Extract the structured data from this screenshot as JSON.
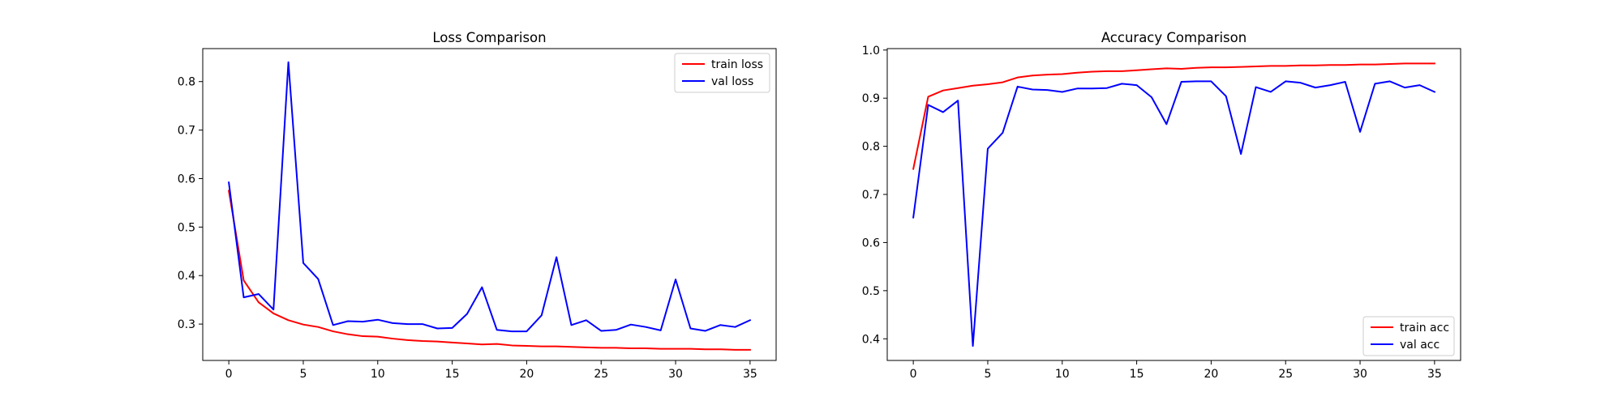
{
  "chart_data": [
    {
      "type": "line",
      "title": "Loss Comparison",
      "xlabel": "",
      "ylabel": "",
      "xlim": [
        -1.75,
        36.75
      ],
      "ylim": [
        0.225,
        0.868
      ],
      "xticks": [
        0,
        5,
        10,
        15,
        20,
        25,
        30,
        35
      ],
      "yticks": [
        0.3,
        0.4,
        0.5,
        0.6,
        0.7,
        0.8
      ],
      "grid": false,
      "legend": "top-right",
      "x": [
        0,
        1,
        2,
        3,
        4,
        5,
        6,
        7,
        8,
        9,
        10,
        11,
        12,
        13,
        14,
        15,
        16,
        17,
        18,
        19,
        20,
        21,
        22,
        23,
        24,
        25,
        26,
        27,
        28,
        29,
        30,
        31,
        32,
        33,
        34,
        35
      ],
      "series": [
        {
          "name": "train loss",
          "color": "#ff0000",
          "values": [
            0.575,
            0.39,
            0.345,
            0.322,
            0.308,
            0.299,
            0.294,
            0.285,
            0.279,
            0.275,
            0.274,
            0.27,
            0.267,
            0.265,
            0.264,
            0.262,
            0.26,
            0.258,
            0.259,
            0.256,
            0.255,
            0.254,
            0.254,
            0.253,
            0.252,
            0.251,
            0.251,
            0.25,
            0.25,
            0.249,
            0.249,
            0.249,
            0.248,
            0.248,
            0.247,
            0.247
          ]
        },
        {
          "name": "val loss",
          "color": "#0000ff",
          "values": [
            0.592,
            0.355,
            0.362,
            0.33,
            0.84,
            0.426,
            0.393,
            0.298,
            0.306,
            0.305,
            0.309,
            0.302,
            0.3,
            0.3,
            0.291,
            0.292,
            0.321,
            0.376,
            0.288,
            0.285,
            0.285,
            0.318,
            0.438,
            0.298,
            0.308,
            0.286,
            0.288,
            0.299,
            0.294,
            0.287,
            0.392,
            0.291,
            0.286,
            0.298,
            0.294,
            0.308
          ]
        }
      ]
    },
    {
      "type": "line",
      "title": "Accuracy Comparison",
      "xlabel": "",
      "ylabel": "",
      "xlim": [
        -1.75,
        36.75
      ],
      "ylim": [
        0.355,
        1.003
      ],
      "xticks": [
        0,
        5,
        10,
        15,
        20,
        25,
        30,
        35
      ],
      "yticks": [
        0.4,
        0.5,
        0.6,
        0.7,
        0.8,
        0.9,
        1.0
      ],
      "grid": false,
      "legend": "bottom-right",
      "x": [
        0,
        1,
        2,
        3,
        4,
        5,
        6,
        7,
        8,
        9,
        10,
        11,
        12,
        13,
        14,
        15,
        16,
        17,
        18,
        19,
        20,
        21,
        22,
        23,
        24,
        25,
        26,
        27,
        28,
        29,
        30,
        31,
        32,
        33,
        34,
        35
      ],
      "series": [
        {
          "name": "train acc",
          "color": "#ff0000",
          "values": [
            0.753,
            0.903,
            0.916,
            0.921,
            0.926,
            0.929,
            0.933,
            0.943,
            0.947,
            0.949,
            0.95,
            0.953,
            0.955,
            0.956,
            0.956,
            0.958,
            0.96,
            0.962,
            0.961,
            0.963,
            0.964,
            0.964,
            0.965,
            0.966,
            0.967,
            0.967,
            0.968,
            0.968,
            0.969,
            0.969,
            0.97,
            0.97,
            0.971,
            0.972,
            0.972,
            0.972
          ]
        },
        {
          "name": "val acc",
          "color": "#0000ff",
          "values": [
            0.652,
            0.886,
            0.871,
            0.895,
            0.385,
            0.795,
            0.828,
            0.924,
            0.918,
            0.917,
            0.913,
            0.92,
            0.92,
            0.921,
            0.93,
            0.927,
            0.902,
            0.846,
            0.934,
            0.935,
            0.935,
            0.904,
            0.784,
            0.923,
            0.913,
            0.935,
            0.932,
            0.922,
            0.927,
            0.934,
            0.83,
            0.93,
            0.935,
            0.922,
            0.927,
            0.913
          ]
        }
      ]
    }
  ]
}
